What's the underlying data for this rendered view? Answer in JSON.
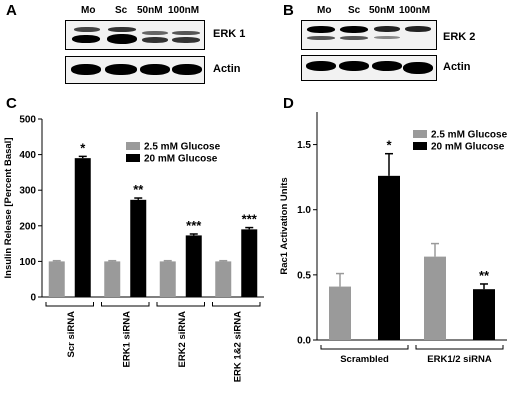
{
  "panels": {
    "a": {
      "letter": "A",
      "lanes": [
        "Mo",
        "Sc",
        "50nM",
        "100nM"
      ],
      "blots": [
        "ERK 1",
        "Actin"
      ]
    },
    "b": {
      "letter": "B",
      "lanes": [
        "Mo",
        "Sc",
        "50nM",
        "100nM"
      ],
      "blots": [
        "ERK 2",
        "Actin"
      ]
    },
    "c": {
      "letter": "C"
    },
    "d": {
      "letter": "D"
    }
  },
  "chart_data": [
    {
      "type": "bar",
      "panel": "C",
      "categories": [
        "Scr siRNA",
        "ERK1 siRNA",
        "ERK2 siRNA",
        "ERK 1&2 siRNA"
      ],
      "series": [
        {
          "name": "2.5 mM Glucose",
          "color": "#9a9a9a",
          "values": [
            100,
            100,
            100,
            100
          ],
          "errors": [
            2,
            2,
            2,
            2
          ]
        },
        {
          "name": "20 mM Glucose",
          "color": "#000000",
          "values": [
            390,
            273,
            173,
            190
          ],
          "errors": [
            5,
            5,
            4,
            5
          ]
        }
      ],
      "annotations": [
        "*",
        "**",
        "***",
        "***"
      ],
      "ylabel": "Insulin Release [Percent Basal]",
      "ylim": [
        0,
        500
      ],
      "yticks": [
        "0",
        "100",
        "200",
        "300",
        "400",
        "500"
      ],
      "legend": "top-right",
      "grid": false
    },
    {
      "type": "bar",
      "panel": "D",
      "categories": [
        "Scrambled",
        "ERK1/2 siRNA"
      ],
      "series": [
        {
          "name": "2.5 mM Glucose",
          "color": "#9a9a9a",
          "values": [
            0.41,
            0.64
          ],
          "errors": [
            0.1,
            0.1
          ]
        },
        {
          "name": "20 mM Glucose",
          "color": "#000000",
          "values": [
            1.26,
            0.39
          ],
          "errors": [
            0.17,
            0.04
          ]
        }
      ],
      "annotations": [
        "*",
        "**"
      ],
      "ylabel": "Rac1 Activation Units",
      "ylim": [
        0,
        1.75
      ],
      "yticks": [
        "0.0",
        "0.5",
        "1.0",
        "1.5"
      ],
      "legend": "top-right",
      "grid": false
    }
  ]
}
